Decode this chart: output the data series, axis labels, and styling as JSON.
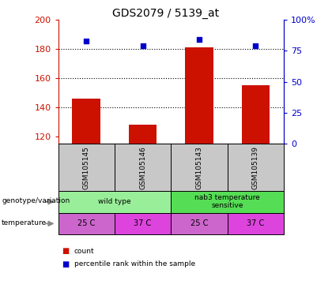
{
  "title": "GDS2079 / 5139_at",
  "samples": [
    "GSM105145",
    "GSM105146",
    "GSM105143",
    "GSM105139"
  ],
  "bar_values": [
    146,
    128,
    181,
    155
  ],
  "percentile_values": [
    83,
    79,
    84,
    79
  ],
  "ylim_left": [
    115,
    200
  ],
  "ylim_right": [
    0,
    100
  ],
  "yticks_left": [
    120,
    140,
    160,
    180,
    200
  ],
  "yticks_right": [
    0,
    25,
    50,
    75,
    100
  ],
  "bar_color": "#cc1100",
  "percentile_color": "#0000cc",
  "grid_lines": [
    140,
    160,
    180
  ],
  "genotype_groups": [
    {
      "label": "wild type",
      "cols": [
        0,
        1
      ],
      "color": "#99ee99"
    },
    {
      "label": "nab3 temperature\nsensitive",
      "cols": [
        2,
        3
      ],
      "color": "#55dd55"
    }
  ],
  "temperature_labels": [
    "25 C",
    "37 C",
    "25 C",
    "37 C"
  ],
  "temperature_colors": [
    "#cc66cc",
    "#dd44dd",
    "#cc66cc",
    "#dd44dd"
  ],
  "row_labels": [
    "genotype/variation",
    "temperature"
  ],
  "legend_items": [
    {
      "label": "count",
      "color": "#cc1100"
    },
    {
      "label": "percentile rank within the sample",
      "color": "#0000cc"
    }
  ],
  "background_color": "#ffffff",
  "plot_bg": "#ffffff",
  "sample_label_bg": "#c8c8c8",
  "bar_width": 0.5
}
